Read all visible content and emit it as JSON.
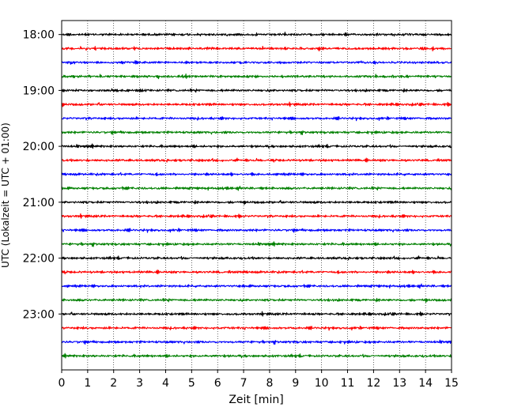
{
  "chart_data": {
    "type": "line",
    "xlabel": "Zeit  [min]",
    "ylabel": "UTC (Lokalzeit = UTC + 01:00)",
    "x_ticks": [
      0,
      1,
      2,
      3,
      4,
      5,
      6,
      7,
      8,
      9,
      10,
      11,
      12,
      13,
      14,
      15
    ],
    "xlim": [
      0,
      15
    ],
    "y_ticks": [
      "18:00",
      "19:00",
      "20:00",
      "21:00",
      "22:00",
      "23:00"
    ],
    "ylim": [
      "17:45",
      "24:00"
    ],
    "grid": "vertical-dotted",
    "trace_interval_minutes": 15,
    "color_cycle": [
      "#000000",
      "#ff0000",
      "#0000ff",
      "#008000"
    ],
    "traces": [
      {
        "start": "18:00"
      },
      {
        "start": "18:15"
      },
      {
        "start": "18:30"
      },
      {
        "start": "18:45"
      },
      {
        "start": "19:00"
      },
      {
        "start": "19:15"
      },
      {
        "start": "19:30"
      },
      {
        "start": "19:45"
      },
      {
        "start": "20:00"
      },
      {
        "start": "20:15"
      },
      {
        "start": "20:30"
      },
      {
        "start": "20:45"
      },
      {
        "start": "21:00"
      },
      {
        "start": "21:15"
      },
      {
        "start": "21:30"
      },
      {
        "start": "21:45"
      },
      {
        "start": "22:00"
      },
      {
        "start": "22:15"
      },
      {
        "start": "22:30"
      },
      {
        "start": "22:45"
      },
      {
        "start": "23:00"
      },
      {
        "start": "23:15"
      },
      {
        "start": "23:30"
      },
      {
        "start": "23:45"
      }
    ]
  }
}
